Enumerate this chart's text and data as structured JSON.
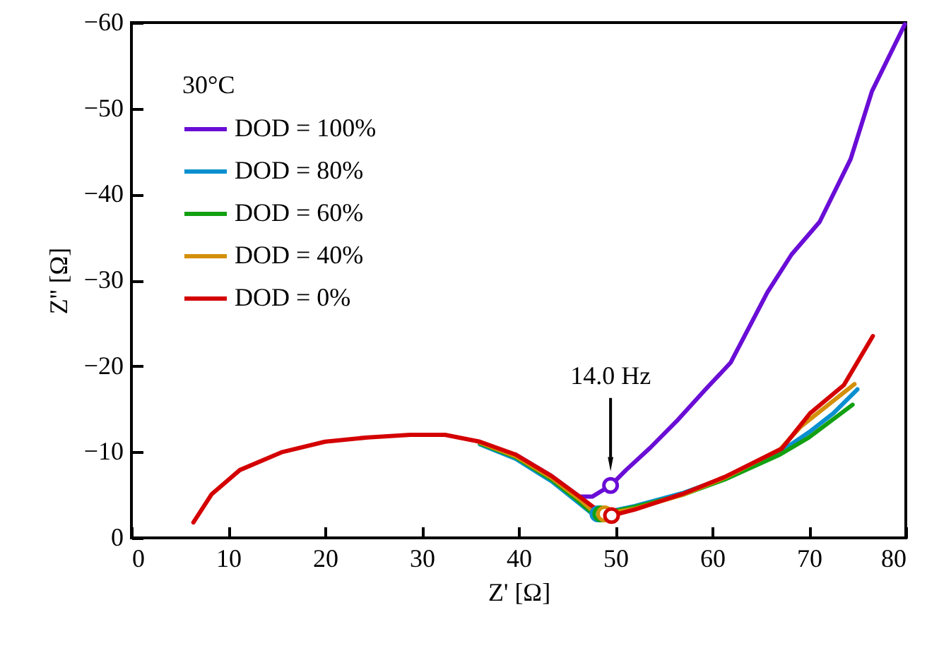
{
  "chart_data": {
    "type": "line",
    "xlabel": "Z' [Ω]",
    "ylabel": "Z'' [Ω]",
    "legend_title": "30°C",
    "legend": "top left",
    "grid": false,
    "xlim": [
      0,
      80
    ],
    "xticks": [
      0,
      10,
      20,
      30,
      40,
      50,
      60,
      70,
      80
    ],
    "ylim": [
      0,
      -60
    ],
    "yticks": [
      0,
      -10,
      -20,
      -30,
      -40,
      -50,
      -60
    ],
    "series": [
      {
        "name": "DOD = 100%",
        "color": "#6a0dd6",
        "x": [
          39.7,
          43.4,
          46.3,
          47.6,
          49.5,
          51.1,
          53.6,
          56.5,
          59.4,
          61.9,
          65.7,
          68.2,
          71.1,
          74.3,
          76.5,
          79.9
        ],
        "values": [
          -9.7,
          -7.2,
          -4.8,
          -4.8,
          -6.1,
          -7.9,
          -10.5,
          -13.8,
          -17.4,
          -20.4,
          -28.6,
          -33,
          -36.8,
          -44.1,
          -52,
          -59.8
        ]
      },
      {
        "name": "DOD = 80%",
        "color": "#0a8fd0",
        "x": [
          36,
          39.7,
          43.4,
          46.3,
          47.5,
          48.2,
          52,
          56.9,
          61.3,
          67,
          70,
          72.5,
          75
        ],
        "values": [
          -10.9,
          -9.2,
          -6.6,
          -4,
          -2.9,
          -2.8,
          -3.7,
          -5.2,
          -7,
          -10,
          -12.3,
          -14.5,
          -17.3
        ]
      },
      {
        "name": "DOD = 60%",
        "color": "#12a012",
        "x": [
          36,
          39.7,
          43.4,
          46.3,
          47.6,
          48.5,
          52,
          56.9,
          61.3,
          67,
          70,
          74.5
        ],
        "values": [
          -11,
          -9.4,
          -6.8,
          -4.2,
          -2.9,
          -2.8,
          -3.6,
          -5,
          -6.8,
          -9.7,
          -11.7,
          -15.5
        ]
      },
      {
        "name": "DOD = 40%",
        "color": "#d4900a",
        "x": [
          36,
          39.7,
          43.4,
          46.3,
          47.8,
          48.9,
          52,
          56.9,
          61.3,
          67,
          69.2,
          72,
          74.7
        ],
        "values": [
          -11.1,
          -9.5,
          -7,
          -4.5,
          -3,
          -2.8,
          -3.4,
          -5,
          -7,
          -10.3,
          -13,
          -15.5,
          -17.9
        ]
      },
      {
        "name": "DOD = 0%",
        "color": "#d40000",
        "x": [
          6.4,
          8.3,
          11.2,
          15.6,
          20,
          24.4,
          28.8,
          32.4,
          36,
          39.7,
          43.4,
          46.3,
          47.7,
          49.6,
          52,
          56.9,
          61.3,
          67.2,
          70.1,
          73.6,
          76.6
        ],
        "values": [
          -1.8,
          -5.1,
          -7.9,
          -10,
          -11.2,
          -11.7,
          -12,
          -12,
          -11.2,
          -9.7,
          -7.2,
          -4.8,
          -3.6,
          -2.6,
          -3.3,
          -5.1,
          -7.1,
          -10.4,
          -14.5,
          -17.8,
          -23.5
        ]
      },
      {
        "type": "scatter",
        "x": [
          49.5,
          48.2,
          48.5,
          48.9,
          49.6
        ],
        "values": [
          -6.1,
          -2.8,
          -2.8,
          -2.8,
          -2.6
        ],
        "colors": [
          "#6a0dd6",
          "#0a8fd0",
          "#12a012",
          "#d4900a",
          "#d40000"
        ]
      }
    ],
    "annotations": [
      "14.0 Hz"
    ]
  }
}
